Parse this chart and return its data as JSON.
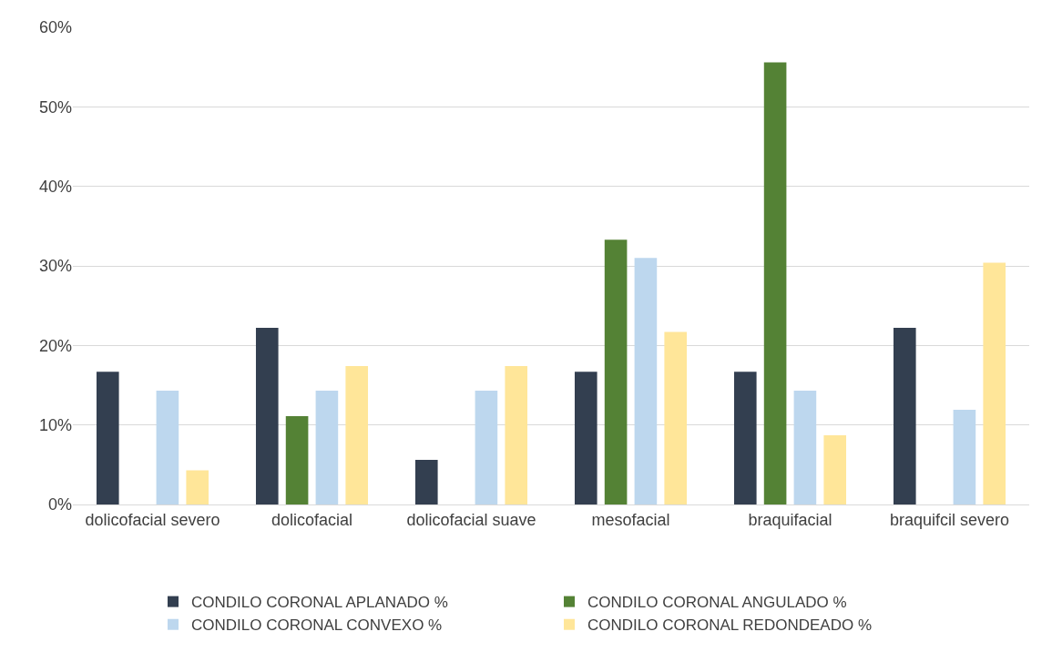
{
  "chart_data": {
    "type": "bar",
    "categories": [
      "dolicofacial severo",
      "dolicofacial",
      "dolicofacial suave",
      "mesofacial",
      "braquifacial",
      "braquifcil severo"
    ],
    "series": [
      {
        "name": "CONDILO CORONAL APLANADO %",
        "color": "#333f50",
        "values": [
          16.7,
          22.2,
          5.6,
          16.7,
          16.7,
          22.2
        ]
      },
      {
        "name": "CONDILO CORONAL ANGULADO %",
        "color": "#548235",
        "values": [
          0,
          11.1,
          0,
          33.3,
          55.6,
          0
        ]
      },
      {
        "name": "CONDILO CORONAL CONVEXO %",
        "color": "#bdd7ee",
        "values": [
          14.3,
          14.3,
          14.3,
          31.0,
          14.3,
          11.9
        ]
      },
      {
        "name": "CONDILO CORONAL REDONDEADO %",
        "color": "#ffe699",
        "values": [
          4.3,
          17.4,
          17.4,
          21.7,
          8.7,
          30.4
        ]
      }
    ],
    "ylim": [
      0,
      60
    ],
    "yticks": [
      {
        "value": 0,
        "label": "0%"
      },
      {
        "value": 10,
        "label": "10%"
      },
      {
        "value": 20,
        "label": "20%"
      },
      {
        "value": 30,
        "label": "30%"
      },
      {
        "value": 40,
        "label": "40%"
      },
      {
        "value": 50,
        "label": "50%"
      },
      {
        "value": 60,
        "label": "60%"
      }
    ],
    "grid": "y",
    "legend": "bottom"
  }
}
